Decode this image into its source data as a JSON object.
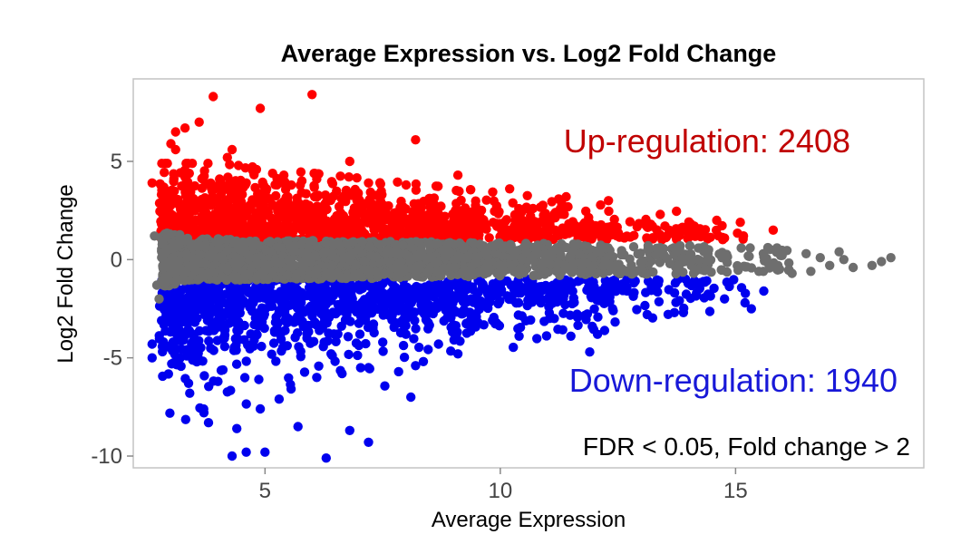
{
  "chart_data": {
    "type": "scatter",
    "title": "Average Expression vs. Log2 Fold Change",
    "xlabel": "Average Expression",
    "ylabel": "Log2 Fold Change",
    "xlim": [
      2.2,
      19.0
    ],
    "ylim": [
      -10.6,
      9.2
    ],
    "x_ticks": [
      5,
      10,
      15
    ],
    "y_ticks": [
      5,
      0,
      -5,
      -10
    ],
    "grid": false,
    "annotations": {
      "up": "Up-regulation: 2408",
      "down": "Down-regulation: 1940",
      "note": "FDR < 0.05, Fold change > 2"
    },
    "series": [
      {
        "color": "#ff0000",
        "points": [
          [
            3.9,
            8.3
          ],
          [
            6.0,
            8.4
          ],
          [
            4.9,
            7.7
          ],
          [
            3.6,
            7.0
          ],
          [
            3.1,
            6.5
          ],
          [
            3.3,
            6.7
          ],
          [
            8.2,
            6.1
          ],
          [
            3.0,
            5.9
          ],
          [
            3.1,
            5.6
          ],
          [
            4.3,
            5.6
          ],
          [
            4.2,
            5.2
          ],
          [
            6.8,
            5.0
          ],
          [
            2.6,
            3.9
          ],
          [
            3.3,
            4.2
          ],
          [
            4.6,
            3.9
          ],
          [
            5.4,
            4.3
          ],
          [
            6.1,
            4.1
          ],
          [
            7.2,
            3.9
          ],
          [
            8.0,
            3.8
          ],
          [
            9.1,
            4.3
          ],
          [
            10.2,
            3.6
          ],
          [
            11.4,
            3.2
          ],
          [
            12.3,
            3.0
          ],
          [
            13.4,
            2.3
          ],
          [
            14.6,
            2.0
          ],
          [
            15.1,
            1.9
          ],
          [
            15.8,
            1.5
          ],
          [
            2.8,
            2.4
          ]
        ]
      },
      {
        "color": "#0000ee",
        "points": [
          [
            6.3,
            -10.1
          ],
          [
            4.3,
            -10.0
          ],
          [
            4.6,
            -9.8
          ],
          [
            5.0,
            -9.8
          ],
          [
            7.2,
            -9.3
          ],
          [
            3.8,
            -8.3
          ],
          [
            4.4,
            -8.6
          ],
          [
            5.7,
            -8.5
          ],
          [
            6.8,
            -8.7
          ],
          [
            3.7,
            -7.8
          ],
          [
            4.9,
            -7.6
          ],
          [
            5.3,
            -7.1
          ],
          [
            8.1,
            -7.0
          ],
          [
            3.4,
            -6.8
          ],
          [
            4.0,
            -6.2
          ],
          [
            6.1,
            -6.0
          ],
          [
            7.2,
            -5.5
          ],
          [
            8.2,
            -5.4
          ],
          [
            3.2,
            -5.0
          ],
          [
            9.1,
            -4.8
          ],
          [
            11.5,
            -3.9
          ],
          [
            11.9,
            -4.7
          ],
          [
            12.4,
            -2.6
          ],
          [
            13.7,
            -2.7
          ],
          [
            15.2,
            -2.2
          ],
          [
            15.6,
            -1.6
          ],
          [
            2.6,
            -4.3
          ],
          [
            2.6,
            -5.0
          ],
          [
            10.4,
            -3.9
          ]
        ]
      },
      {
        "color": "#6e6e6e",
        "points": [
          [
            15.9,
            -0.3
          ],
          [
            16.2,
            -0.7
          ],
          [
            16.5,
            0.3
          ],
          [
            16.8,
            0.1
          ],
          [
            17.0,
            -0.3
          ],
          [
            17.2,
            0.4
          ],
          [
            17.5,
            -0.4
          ],
          [
            17.3,
            0.0
          ],
          [
            17.9,
            -0.3
          ],
          [
            18.1,
            -0.1
          ],
          [
            18.3,
            0.1
          ],
          [
            16.6,
            -0.6
          ],
          [
            2.65,
            1.2
          ],
          [
            2.7,
            -1.3
          ],
          [
            2.75,
            -2.0
          ]
        ]
      }
    ]
  }
}
